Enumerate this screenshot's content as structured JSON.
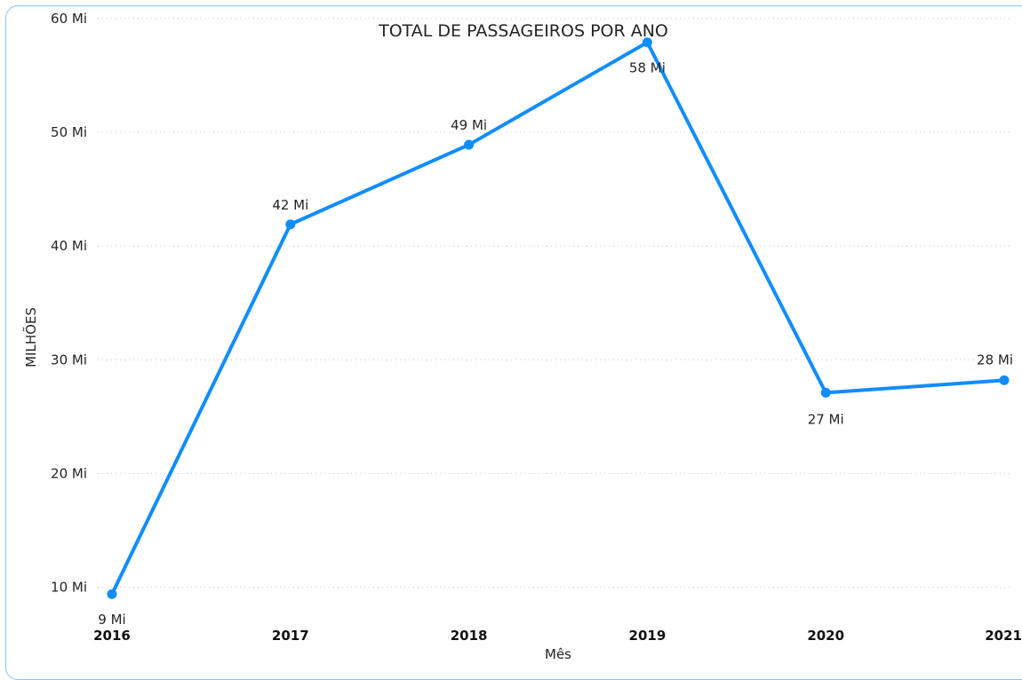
{
  "chart_data": {
    "type": "line",
    "title": "TOTAL DE PASSAGEIROS POR ANO",
    "xlabel": "Mês",
    "ylabel": "MILHÕES",
    "categories": [
      "2016",
      "2017",
      "2018",
      "2019",
      "2020",
      "2021"
    ],
    "series": [
      {
        "values": [
          9.4,
          41.9,
          48.9,
          57.9,
          27.1,
          28.2
        ],
        "data_labels": [
          "9 Mi",
          "42 Mi",
          "49 Mi",
          "58 Mi",
          "27 Mi",
          "28 Mi"
        ],
        "color": "#118DFF"
      }
    ],
    "ylim": [
      7,
      61
    ],
    "y_ticks": [
      10,
      20,
      30,
      40,
      50,
      60
    ],
    "y_tick_labels": [
      "10 Mi",
      "20 Mi",
      "30 Mi",
      "40 Mi",
      "50 Mi",
      "60 Mi"
    ],
    "grid": true,
    "legend": "none"
  }
}
